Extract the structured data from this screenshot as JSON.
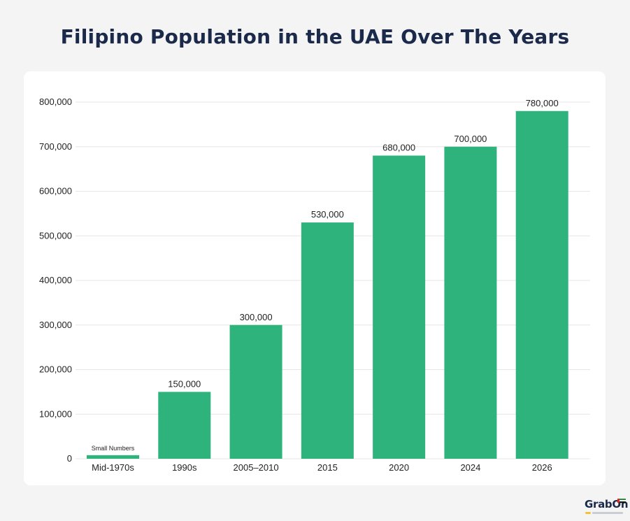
{
  "chart_data": {
    "type": "bar",
    "title": "Filipino Population in the UAE Over The Years",
    "categories": [
      "Mid-1970s",
      "1990s",
      "2005–2010",
      "2015",
      "2020",
      "2024",
      "2026"
    ],
    "values": [
      8000,
      150000,
      300000,
      530000,
      680000,
      700000,
      780000
    ],
    "data_labels": [
      "Small Numbers",
      "150,000",
      "300,000",
      "530,000",
      "680,000",
      "700,000",
      "780,000"
    ],
    "ylim": [
      0,
      800000
    ],
    "yticks": [
      0,
      100000,
      200000,
      300000,
      400000,
      500000,
      600000,
      700000,
      800000
    ],
    "ytick_labels": [
      "0",
      "100,000",
      "200,000",
      "300,000",
      "400,000",
      "500,000",
      "600,000",
      "700,000",
      "800,000"
    ],
    "xlabel": "",
    "ylabel": "",
    "grid": true,
    "bar_color": "#2eb37c",
    "grid_color": "#e6e6e6"
  },
  "branding": {
    "logo_text": "GrabOn"
  }
}
